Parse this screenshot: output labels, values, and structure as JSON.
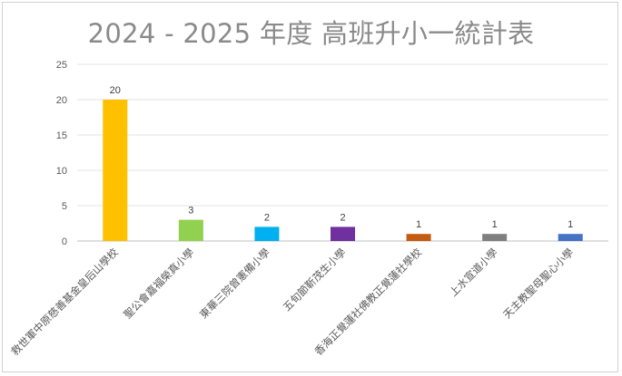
{
  "chart_data": {
    "type": "bar",
    "title": "2024 - 2025 年度 高班升小一統計表",
    "xlabel": "",
    "ylabel": "",
    "ylim": [
      0,
      25
    ],
    "yticks": [
      0,
      5,
      10,
      15,
      20,
      25
    ],
    "grid": true,
    "legend": "none",
    "categories": [
      "救世軍中原慈善基金皇后山學校",
      "聖公會嘉福榮真小學",
      "東華三院曾憲備小學",
      "五旬節靳茂生小學",
      "香海正覺蓮社佛教正覺蓮社學校",
      "上水宣道小學",
      "天主教聖母聖心小學"
    ],
    "values": [
      20,
      3,
      2,
      2,
      1,
      1,
      1
    ],
    "colors": [
      "#ffc000",
      "#92d050",
      "#00b0f0",
      "#7030a0",
      "#c55a11",
      "#7f7f7f",
      "#4472c4"
    ]
  }
}
